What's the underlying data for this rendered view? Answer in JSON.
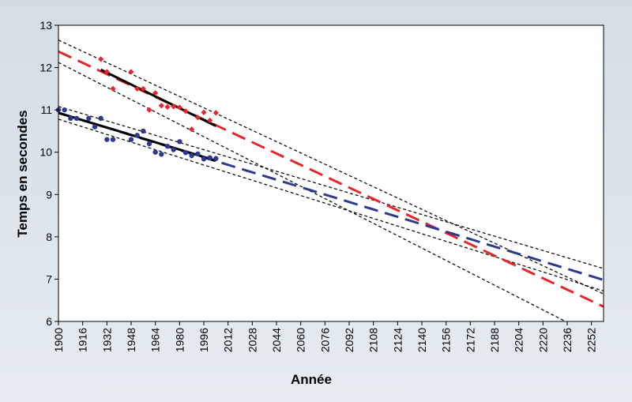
{
  "chart_data": {
    "type": "scatter",
    "title": "",
    "xlabel": "Année",
    "ylabel": "Temps en secondes",
    "xlim": [
      1900,
      2260
    ],
    "ylim": [
      6,
      13
    ],
    "x_ticks": [
      1900,
      1916,
      1932,
      1948,
      1964,
      1980,
      1996,
      2012,
      2028,
      2044,
      2060,
      2076,
      2092,
      2108,
      2124,
      2140,
      2156,
      2172,
      2188,
      2204,
      2220,
      2236,
      2252
    ],
    "y_ticks": [
      6,
      7,
      8,
      9,
      10,
      11,
      12,
      13
    ],
    "grid": false,
    "legend": "none",
    "series": [
      {
        "color": "#e5262a",
        "points": [
          {
            "x": 1928,
            "y": 12.2
          },
          {
            "x": 1932,
            "y": 11.9
          },
          {
            "x": 1936,
            "y": 11.5
          },
          {
            "x": 1948,
            "y": 11.9
          },
          {
            "x": 1952,
            "y": 11.5
          },
          {
            "x": 1956,
            "y": 11.5
          },
          {
            "x": 1960,
            "y": 11.0
          },
          {
            "x": 1964,
            "y": 11.4
          },
          {
            "x": 1968,
            "y": 11.1
          },
          {
            "x": 1972,
            "y": 11.07
          },
          {
            "x": 1976,
            "y": 11.08
          },
          {
            "x": 1980,
            "y": 11.06
          },
          {
            "x": 1984,
            "y": 10.97
          },
          {
            "x": 1988,
            "y": 10.54
          },
          {
            "x": 1992,
            "y": 10.82
          },
          {
            "x": 1996,
            "y": 10.94
          },
          {
            "x": 2000,
            "y": 10.75
          },
          {
            "x": 2004,
            "y": 10.93
          }
        ],
        "fit_solid": {
          "x": [
            1928,
            2004
          ],
          "y": [
            11.95,
            10.62
          ]
        },
        "trend_dashed": {
          "x": [
            1900,
            2260
          ],
          "y": [
            12.38,
            6.35
          ]
        },
        "ci_lines": [
          {
            "x": [
              1900,
              2260
            ],
            "y": [
              12.65,
              6.65
            ]
          },
          {
            "x": [
              1900,
              2236
            ],
            "y": [
              12.12,
              5.98
            ]
          }
        ]
      },
      {
        "color": "#2b3a8c",
        "points": [
          {
            "x": 1900,
            "y": 11.0
          },
          {
            "x": 1904,
            "y": 11.0
          },
          {
            "x": 1908,
            "y": 10.8
          },
          {
            "x": 1912,
            "y": 10.8
          },
          {
            "x": 1920,
            "y": 10.8
          },
          {
            "x": 1924,
            "y": 10.6
          },
          {
            "x": 1928,
            "y": 10.8
          },
          {
            "x": 1932,
            "y": 10.3
          },
          {
            "x": 1936,
            "y": 10.3
          },
          {
            "x": 1948,
            "y": 10.3
          },
          {
            "x": 1952,
            "y": 10.4
          },
          {
            "x": 1956,
            "y": 10.5
          },
          {
            "x": 1960,
            "y": 10.2
          },
          {
            "x": 1964,
            "y": 10.0
          },
          {
            "x": 1968,
            "y": 9.95
          },
          {
            "x": 1972,
            "y": 10.14
          },
          {
            "x": 1976,
            "y": 10.06
          },
          {
            "x": 1980,
            "y": 10.25
          },
          {
            "x": 1984,
            "y": 9.99
          },
          {
            "x": 1988,
            "y": 9.92
          },
          {
            "x": 1992,
            "y": 9.96
          },
          {
            "x": 1996,
            "y": 9.84
          },
          {
            "x": 2000,
            "y": 9.87
          },
          {
            "x": 2004,
            "y": 9.85
          }
        ],
        "fit_solid": {
          "x": [
            1900,
            2004
          ],
          "y": [
            10.93,
            9.8
          ]
        },
        "trend_dashed": {
          "x": [
            1900,
            2260
          ],
          "y": [
            10.93,
            6.98
          ]
        },
        "ci_lines": [
          {
            "x": [
              1900,
              2260
            ],
            "y": [
              11.08,
              7.25
            ]
          },
          {
            "x": [
              1900,
              2260
            ],
            "y": [
              10.78,
              6.72
            ]
          }
        ]
      }
    ]
  }
}
